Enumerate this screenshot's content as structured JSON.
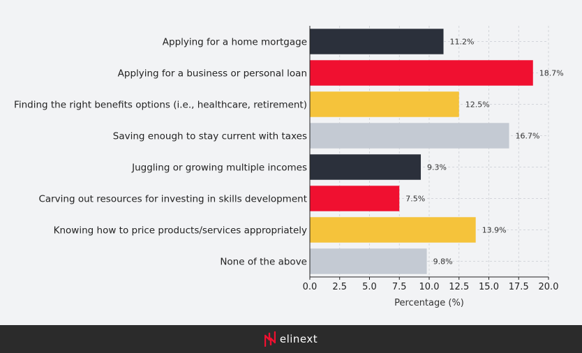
{
  "chart_data": {
    "type": "bar",
    "orientation": "horizontal",
    "categories": [
      "Applying for a home mortgage",
      "Applying for a business or personal loan",
      "Finding the right benefits options (i.e., healthcare, retirement)",
      "Saving enough to stay current with taxes",
      "Juggling or growing multiple incomes",
      "Carving out resources for investing in skills development",
      "Knowing how to price products/services appropriately",
      "None of the above"
    ],
    "values": [
      11.2,
      18.7,
      12.5,
      16.7,
      9.3,
      7.5,
      13.9,
      9.8
    ],
    "data_labels": [
      "11.2%",
      "18.7%",
      "12.5%",
      "16.7%",
      "9.3%",
      "7.5%",
      "13.9%",
      "9.8%"
    ],
    "bar_colors": [
      "#2b303b",
      "#f01030",
      "#f5c33b",
      "#c4cad3",
      "#2b303b",
      "#f01030",
      "#f5c33b",
      "#c4cad3"
    ],
    "xlabel": "Percentage (%)",
    "xlim": [
      0,
      20
    ],
    "xticks": [
      0,
      2.5,
      5,
      7.5,
      10,
      12.5,
      15,
      17.5,
      20
    ],
    "xtick_labels": [
      "0.0",
      "2.5",
      "5.0",
      "7.5",
      "10.0",
      "12.5",
      "15.0",
      "17.5",
      "20.0"
    ],
    "grid": true
  },
  "footer": {
    "brand_text": "elinext",
    "logo_icon": "elinext-logo-icon",
    "background": "#2b2b2b"
  }
}
